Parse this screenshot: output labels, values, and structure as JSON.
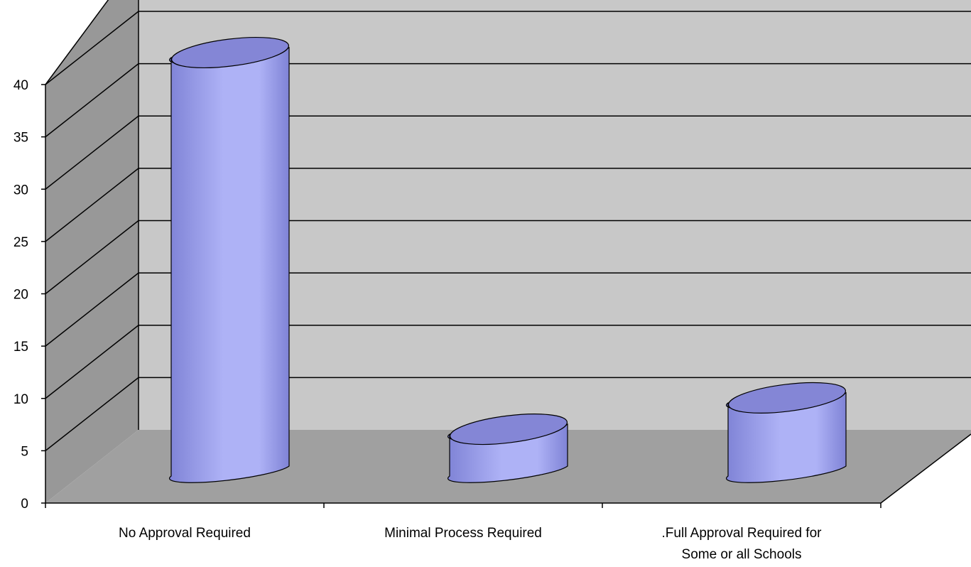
{
  "chart_data": {
    "type": "bar",
    "categories": [
      "No Approval Required",
      "Minimal Process Required",
      ".Full Approval Required for Some or all Schools"
    ],
    "category_label_lines": [
      [
        "No Approval Required"
      ],
      [
        "Minimal Process Required"
      ],
      [
        ".Full Approval Required for",
        "Some or all Schools"
      ]
    ],
    "values": [
      40,
      4,
      7
    ],
    "ylim": [
      0,
      40
    ],
    "yticks": [
      0,
      5,
      10,
      15,
      20,
      25,
      30,
      35,
      40
    ],
    "grid": true,
    "style": "3d-cylinder",
    "colors": {
      "bar_fill": "#aeb2f6",
      "bar_dark": "#7f83d6",
      "bar_top": "#8486d6",
      "wall": "#c8c8c8",
      "side_wall": "#989898",
      "floor": "#a0a0a0",
      "gridline": "#000000"
    }
  }
}
